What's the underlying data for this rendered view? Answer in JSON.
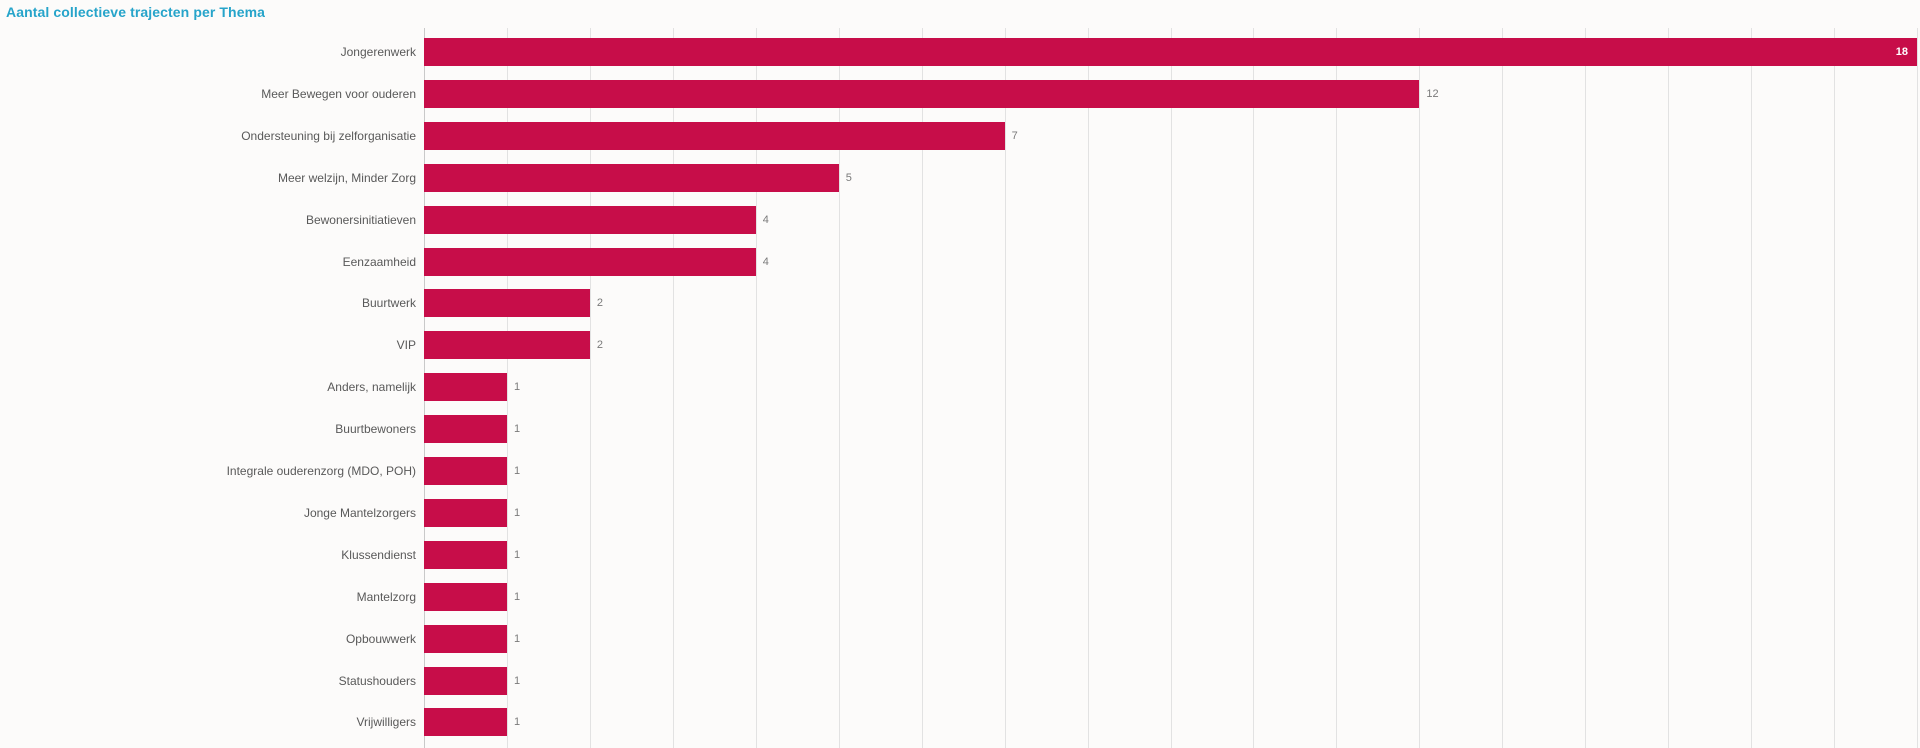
{
  "title": "Aantal collectieve trajecten per Thema",
  "chart_data": {
    "type": "bar",
    "orientation": "horizontal",
    "title": "Aantal collectieve trajecten per Thema",
    "categories": [
      "Jongerenwerk",
      "Meer Bewegen voor ouderen",
      "Ondersteuning bij zelforganisatie",
      "Meer welzijn, Minder Zorg",
      "Bewonersinitiatieven",
      "Eenzaamheid",
      "Buurtwerk",
      "VIP",
      "Anders, namelijk",
      "Buurtbewoners",
      "Integrale ouderenzorg (MDO, POH)",
      "Jonge Mantelzorgers",
      "Klussendienst",
      "Mantelzorg",
      "Opbouwwerk",
      "Statushouders",
      "Vrijwilligers"
    ],
    "values": [
      18,
      12,
      7,
      5,
      4,
      4,
      2,
      2,
      1,
      1,
      1,
      1,
      1,
      1,
      1,
      1,
      1
    ],
    "xlabel": "",
    "ylabel": "",
    "xlim": [
      0,
      18
    ],
    "tick_interval": 1,
    "grid": "vertical",
    "legend": "none",
    "value_labels": "end-of-bar",
    "colors": {
      "bar": "#C70D49",
      "title": "#26A4CA",
      "category_label": "#595959",
      "value_label": "#7A7A7A",
      "value_label_inside": "#FFFFFF",
      "gridline": "#E2E2E2",
      "axis_line": "#C9C9C9",
      "background": "#FCFBFA"
    }
  }
}
